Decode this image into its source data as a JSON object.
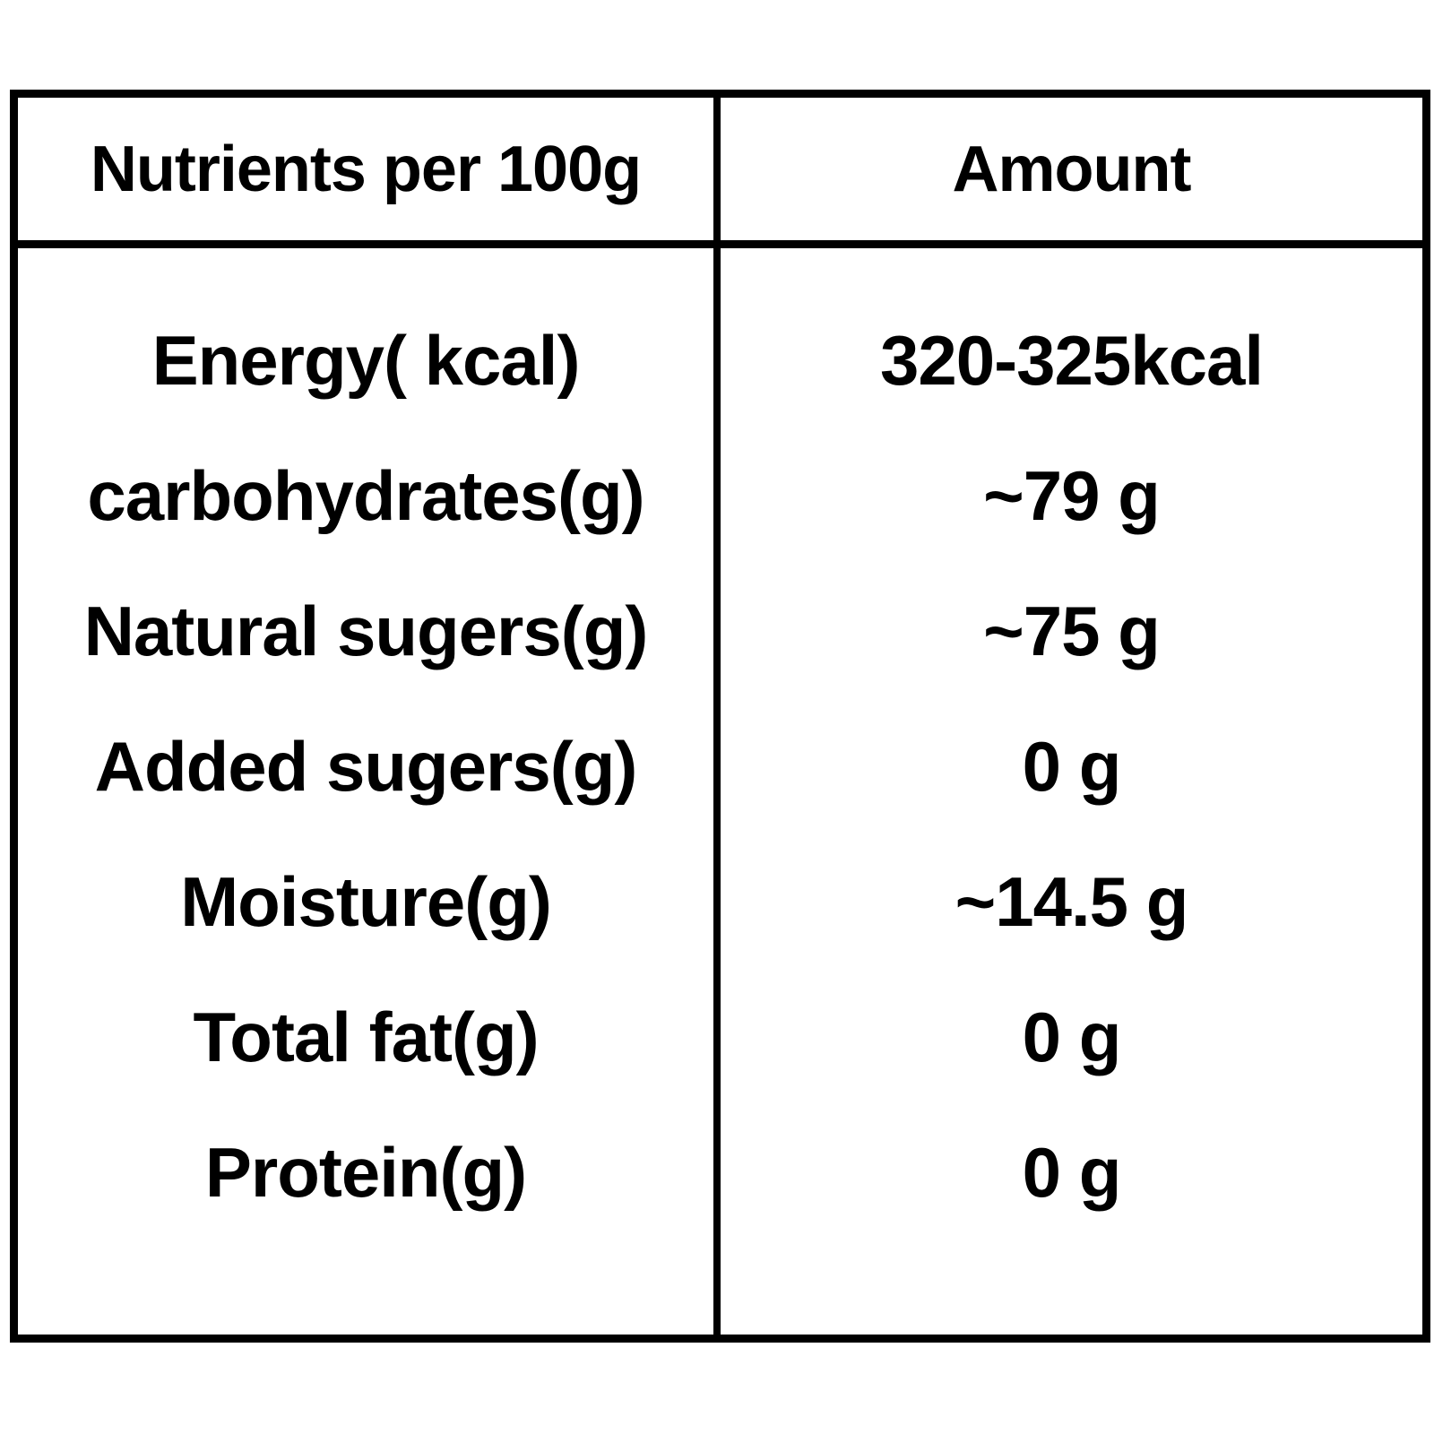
{
  "table": {
    "header": {
      "nutrients_label": "Nutrients per 100g",
      "amount_label": "Amount"
    },
    "rows": [
      {
        "nutrient": "Energy( kcal)",
        "amount": "320-325kcal"
      },
      {
        "nutrient": "carbohydrates(g)",
        "amount": "~79 g"
      },
      {
        "nutrient": "Natural sugers(g)",
        "amount": "~75 g"
      },
      {
        "nutrient": "Added sugers(g)",
        "amount": "0 g"
      },
      {
        "nutrient": "Moisture(g)",
        "amount": "~14.5 g"
      },
      {
        "nutrient": "Total fat(g)",
        "amount": "0 g"
      },
      {
        "nutrient": "Protein(g)",
        "amount": "0 g"
      }
    ],
    "colors": {
      "border": "#000000",
      "text": "#000000",
      "background": "#ffffff"
    }
  },
  "chart_data": {
    "type": "table",
    "title": "Nutrients per 100g",
    "columns": [
      "Nutrients per 100g",
      "Amount"
    ],
    "rows": [
      [
        "Energy( kcal)",
        "320-325kcal"
      ],
      [
        "carbohydrates(g)",
        "~79 g"
      ],
      [
        "Natural sugers(g)",
        "~75 g"
      ],
      [
        "Added sugers(g)",
        "0 g"
      ],
      [
        "Moisture(g)",
        "~14.5 g"
      ],
      [
        "Total fat(g)",
        "0 g"
      ],
      [
        "Protein(g)",
        "0 g"
      ]
    ]
  }
}
